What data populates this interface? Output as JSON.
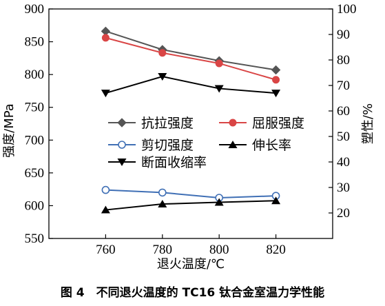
{
  "caption": "图 4　不同退火温度的 TC16 钛合金室温力学性能",
  "chart_data": {
    "type": "line",
    "xlabel": "退火温度/℃",
    "ylabel": "强度/MPa",
    "y2label": "塑性/%",
    "x": [
      760,
      780,
      800,
      820
    ],
    "xticks": [
      760,
      780,
      800,
      820
    ],
    "xlim": [
      740,
      840
    ],
    "ylim": [
      550,
      900
    ],
    "yticks": [
      550,
      600,
      650,
      700,
      750,
      800,
      850,
      900
    ],
    "y2lim": [
      10,
      100
    ],
    "y2ticks": [
      20,
      30,
      40,
      50,
      60,
      70,
      80,
      90,
      100
    ],
    "legend_position": "center",
    "series": [
      {
        "name": "抗拉强度",
        "axis": "left",
        "marker": "diamond",
        "color": "#555555",
        "values": [
          866,
          838,
          821,
          807
        ]
      },
      {
        "name": "屈服强度",
        "axis": "left",
        "marker": "circle",
        "color": "#d94545",
        "values": [
          856,
          833,
          817,
          792
        ]
      },
      {
        "name": "剪切强度",
        "axis": "left",
        "marker": "open-circle",
        "color": "#3f6fb5",
        "values": [
          624,
          620,
          612,
          615
        ]
      },
      {
        "name": "伸长率",
        "axis": "right",
        "marker": "triangle-up",
        "color": "#000000",
        "values": [
          21.2,
          23.5,
          24.2,
          24.8
        ]
      },
      {
        "name": "断面收缩率",
        "axis": "right",
        "marker": "triangle-down",
        "color": "#000000",
        "values": [
          67,
          73.5,
          68.8,
          67
        ]
      }
    ]
  }
}
